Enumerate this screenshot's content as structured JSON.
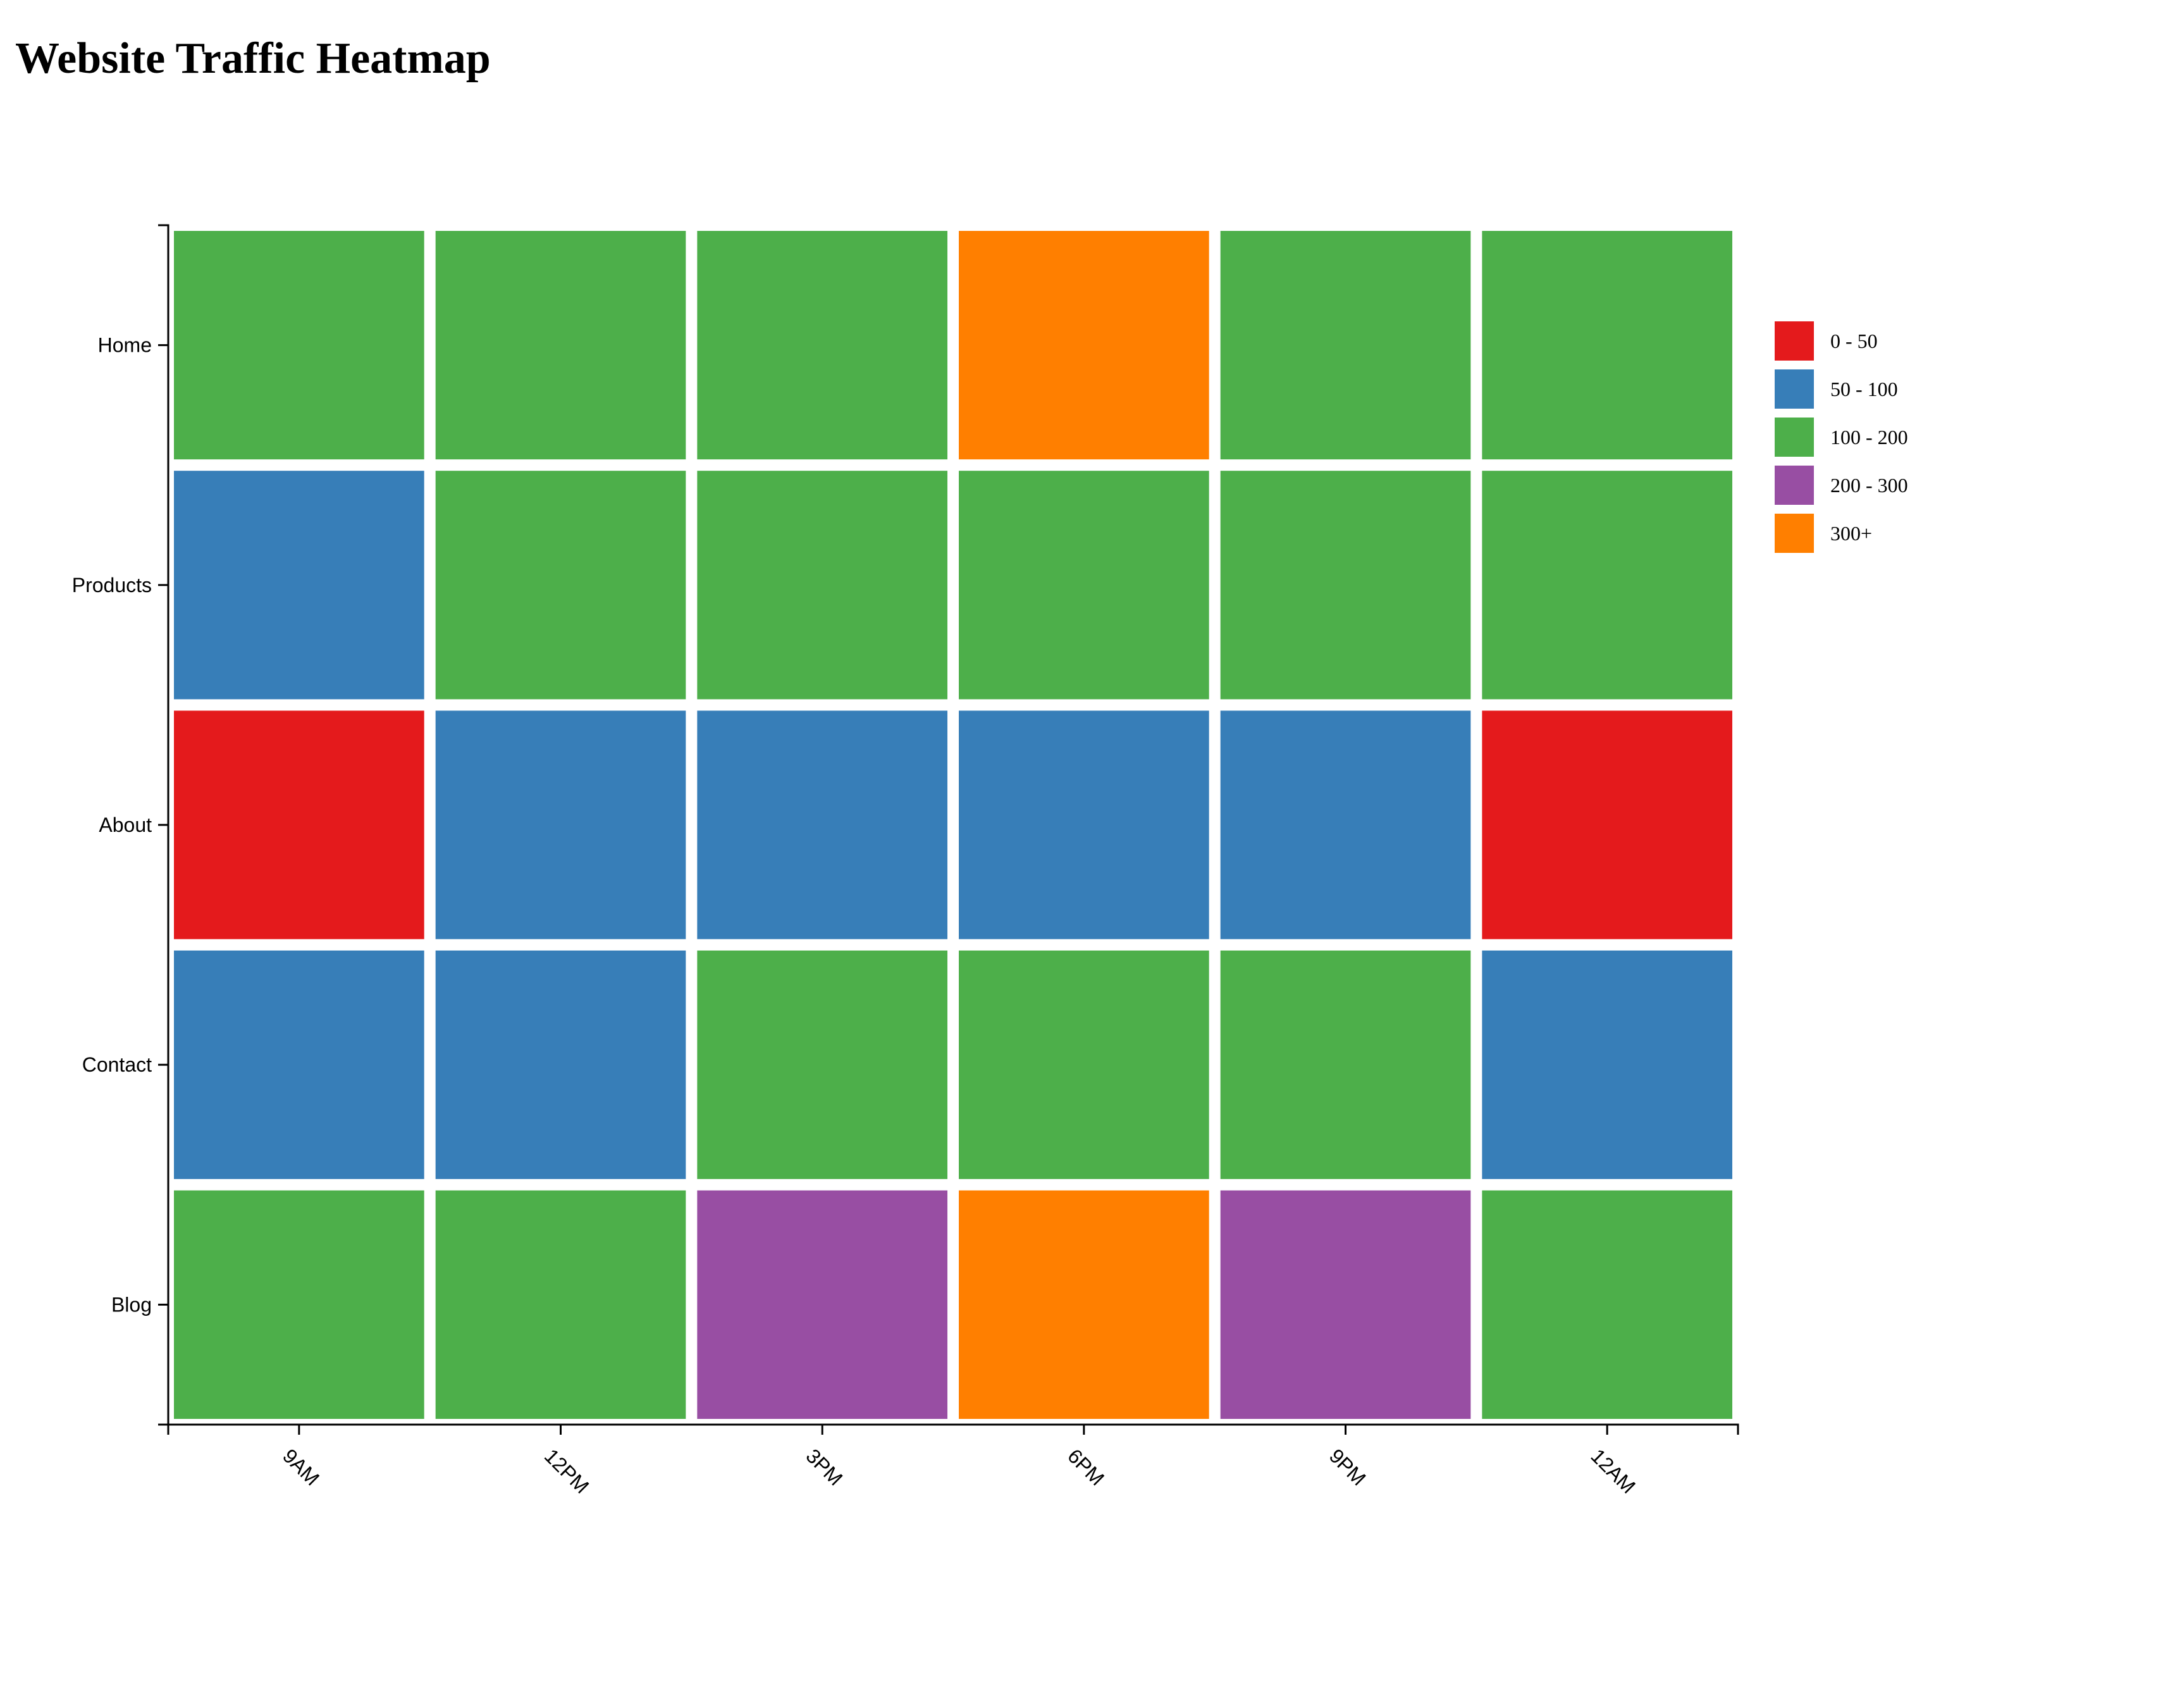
{
  "chart_data": {
    "type": "heatmap",
    "title": "Website Traffic Heatmap",
    "xlabel": "",
    "ylabel": "",
    "x_categories": [
      "9AM",
      "12PM",
      "3PM",
      "6PM",
      "9PM",
      "12AM"
    ],
    "y_categories": [
      "Home",
      "Products",
      "About",
      "Contact",
      "Blog"
    ],
    "bins": [
      {
        "label": "0 - 50",
        "color": "#e41a1c"
      },
      {
        "label": "50 - 100",
        "color": "#377eb8"
      },
      {
        "label": "100 - 200",
        "color": "#4daf4a"
      },
      {
        "label": "200 - 300",
        "color": "#984ea3"
      },
      {
        "label": "300+",
        "color": "#ff7f00"
      }
    ],
    "cells": [
      [
        "100 - 200",
        "100 - 200",
        "100 - 200",
        "300+",
        "100 - 200",
        "100 - 200"
      ],
      [
        "50 - 100",
        "100 - 200",
        "100 - 200",
        "100 - 200",
        "100 - 200",
        "100 - 200"
      ],
      [
        "0 - 50",
        "50 - 100",
        "50 - 100",
        "50 - 100",
        "50 - 100",
        "0 - 50"
      ],
      [
        "50 - 100",
        "50 - 100",
        "100 - 200",
        "100 - 200",
        "100 - 200",
        "50 - 100"
      ],
      [
        "100 - 200",
        "100 - 200",
        "200 - 300",
        "300+",
        "200 - 300",
        "100 - 200"
      ]
    ],
    "legend_position": "right",
    "grid": false
  }
}
